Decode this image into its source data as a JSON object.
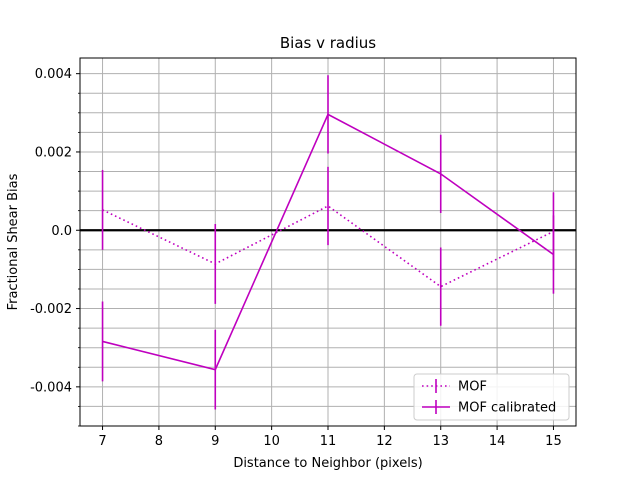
{
  "chart_data": {
    "type": "line",
    "title": "Bias v radius",
    "xlabel": "Distance to Neighbor (pixels)",
    "ylabel": "Fractional Shear Bias",
    "xlim": [
      6.6,
      15.4
    ],
    "ylim": [
      -0.005,
      0.0044
    ],
    "xticks": [
      7,
      8,
      9,
      10,
      11,
      12,
      13,
      14,
      15
    ],
    "xtick_labels": [
      "7",
      "8",
      "9",
      "10",
      "11",
      "12",
      "13",
      "14",
      "15"
    ],
    "yticks": [
      -0.004,
      -0.002,
      0.0,
      0.002,
      0.004
    ],
    "ytick_labels": [
      "-0.004",
      "-0.002",
      "0.0",
      "0.002",
      "0.004"
    ],
    "grid": true,
    "grid_minor_y": true,
    "reference_line_y": 0,
    "reference_line_color": "#000000",
    "legend_position": "lower-right",
    "series": [
      {
        "name": "MOF",
        "style": "dotted",
        "color": "#bf00bf",
        "x": [
          7,
          9,
          11,
          13,
          15
        ],
        "y": [
          0.00052,
          -0.00086,
          0.00062,
          -0.00144,
          -3e-05
        ],
        "yerr": [
          0.00102,
          0.00102,
          0.001,
          0.001,
          0.001
        ]
      },
      {
        "name": "MOF calibrated",
        "style": "solid",
        "color": "#bf00bf",
        "x": [
          7,
          9,
          11,
          13,
          15
        ],
        "y": [
          -0.00284,
          -0.00356,
          0.00296,
          0.00144,
          -0.00062
        ],
        "yerr": [
          0.00102,
          0.00102,
          0.001,
          0.001,
          0.001
        ]
      }
    ]
  }
}
